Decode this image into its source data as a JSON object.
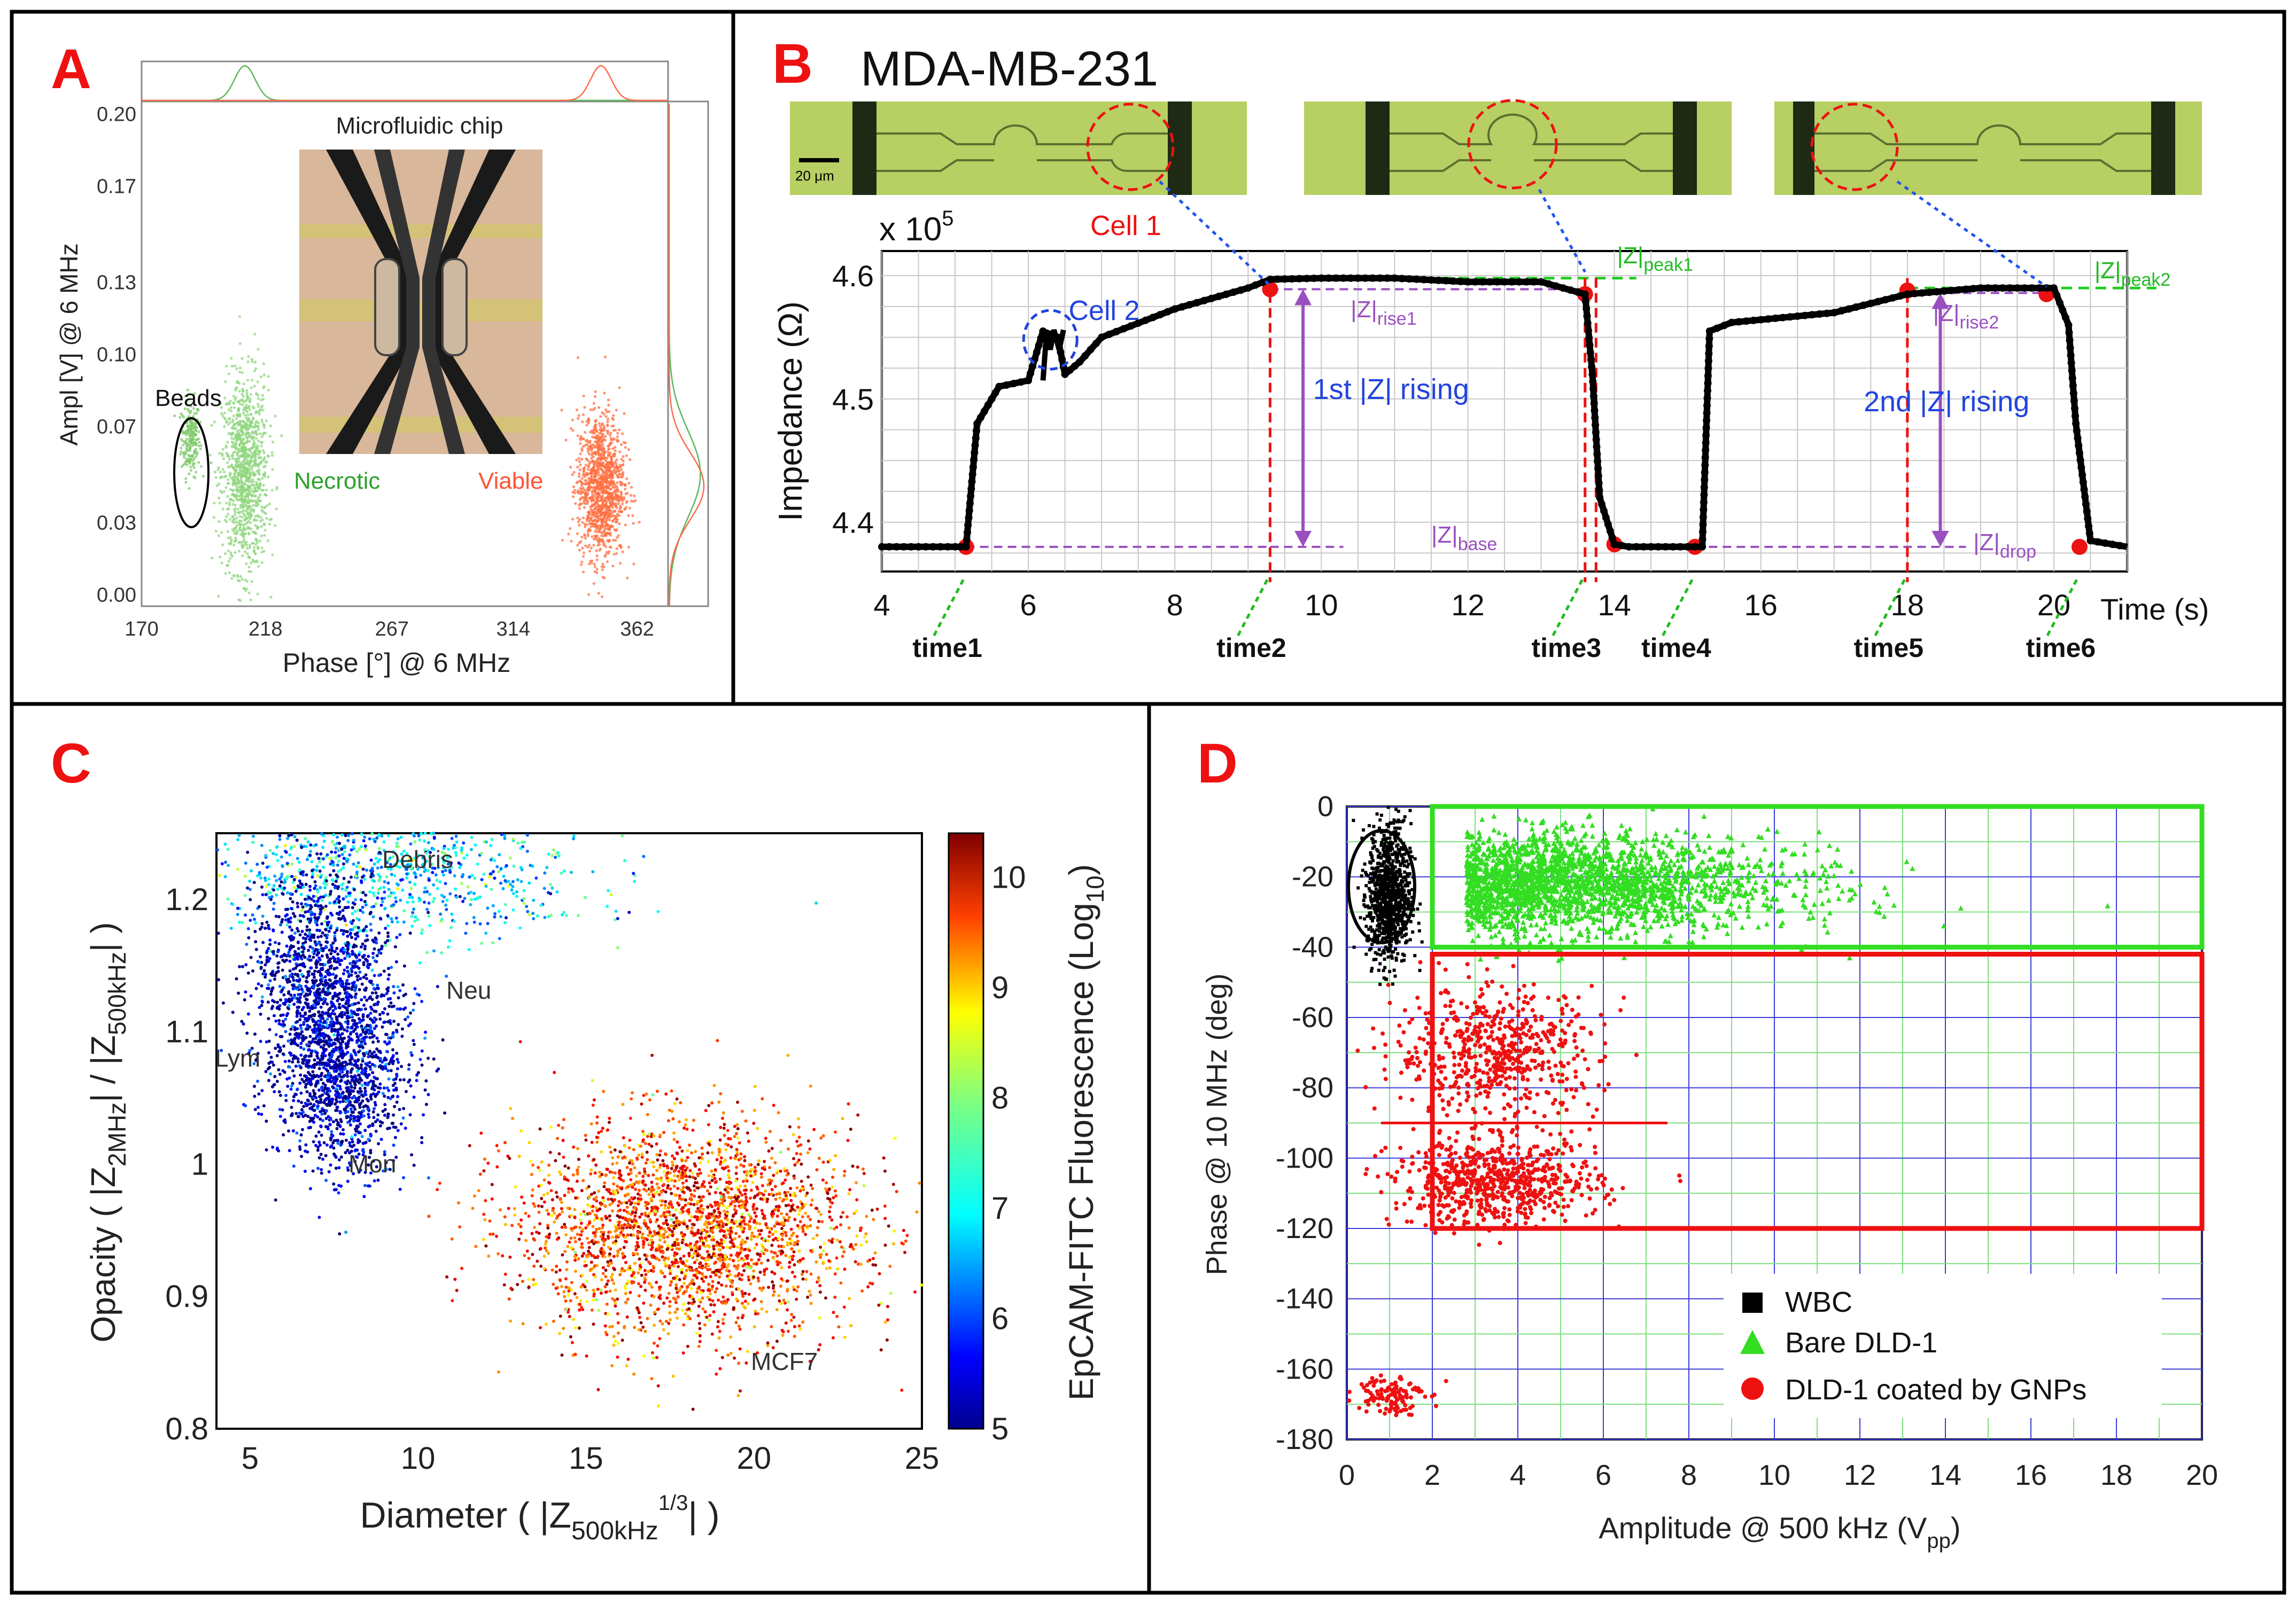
{
  "chart_data": [
    {
      "panel": "A",
      "type": "scatter",
      "xlabel": "Phase [°] @ 6 MHz",
      "ylabel": "Ampl [V] @ 6 MHz",
      "xlim": [
        170,
        374
      ],
      "ylim": [
        -0.005,
        0.205
      ],
      "xticks": [
        "170",
        "218",
        "267",
        "314",
        "362"
      ],
      "yticks": [
        "0.00",
        "0.03",
        "0.07",
        "0.10",
        "0.13",
        "0.17",
        "0.20"
      ],
      "inset_title": "Microfluidic chip",
      "series": [
        {
          "name": "Beads",
          "color": "#7ec96a",
          "cx": 189,
          "cy": 0.065,
          "sx": 1.8,
          "sy": 0.008,
          "n": 220
        },
        {
          "name": "Necrotic",
          "color": "#8fd67e",
          "cx": 210,
          "cy": 0.05,
          "sx": 4.5,
          "sy": 0.02,
          "n": 1100
        },
        {
          "name": "Viable",
          "color": "#ff7043",
          "cx": 348,
          "cy": 0.045,
          "sx": 4.5,
          "sy": 0.015,
          "n": 1200
        }
      ],
      "annotations": [
        "Beads",
        "Necrotic",
        "Viable"
      ]
    },
    {
      "panel": "B",
      "type": "line",
      "title": "MDA-MB-231",
      "xlabel": "Time (s)",
      "ylabel": "Impedance (Ω)",
      "multiplier": "x 10",
      "multiplier_exp": "5",
      "xlim": [
        4,
        21
      ],
      "ylim": [
        4.36,
        4.62
      ],
      "xticks": [
        "4",
        "6",
        "8",
        "10",
        "12",
        "14",
        "16",
        "18",
        "20"
      ],
      "yticks": [
        "4.4",
        "4.5",
        "4.6"
      ],
      "x": [
        4.0,
        5.0,
        5.15,
        5.3,
        5.6,
        6.0,
        6.2,
        6.4,
        6.5,
        6.7,
        7.0,
        8.0,
        9.0,
        9.3,
        10.0,
        11.0,
        12.0,
        13.0,
        13.6,
        13.7,
        13.8,
        14.0,
        14.2,
        15.0,
        15.2,
        15.3,
        15.6,
        17.0,
        18.0,
        19.0,
        20.0,
        20.2,
        20.3,
        20.5,
        21.0
      ],
      "values": [
        4.38,
        4.38,
        4.38,
        4.48,
        4.51,
        4.515,
        4.555,
        4.55,
        4.52,
        4.53,
        4.55,
        4.573,
        4.59,
        4.597,
        4.598,
        4.598,
        4.595,
        4.595,
        4.585,
        4.52,
        4.42,
        4.382,
        4.38,
        4.38,
        4.38,
        4.555,
        4.562,
        4.57,
        4.585,
        4.59,
        4.59,
        4.56,
        4.48,
        4.385,
        4.38
      ],
      "marked_points": [
        {
          "label": "time1",
          "x": 5.15,
          "y": 4.38
        },
        {
          "label": "time2",
          "x": 9.3,
          "y": 4.589
        },
        {
          "label": "time3",
          "x": 13.6,
          "y": 4.585
        },
        {
          "label": "time4",
          "x": 15.1,
          "y": 4.38
        },
        {
          "label": "time5",
          "x": 18.0,
          "y": 4.588
        },
        {
          "label": "time6",
          "x": 20.35,
          "y": 4.38
        }
      ],
      "extra_points": [
        {
          "x": 14.0,
          "y": 4.382
        },
        {
          "x": 19.9,
          "y": 4.585
        }
      ],
      "peak1": 4.598,
      "peak2": 4.59,
      "base": 4.38,
      "labels": {
        "cell1": "Cell 1",
        "cell2": "Cell 2",
        "rising1": "1st |Z| rising",
        "rising2": "2nd |Z| rising",
        "z": "|Z|",
        "peak1": "peak1",
        "peak2": "peak2",
        "rise1": "rise1",
        "rise2": "rise2",
        "base": "base",
        "drop": "drop",
        "scale_bar": "20 μm"
      }
    },
    {
      "panel": "C",
      "type": "scatter",
      "xlabel_main": "Diameter ( |Z",
      "xlabel_sub": "500kHz",
      "xlabel_sup": "1/3",
      "xlabel_end": "| )",
      "ylabel_main": "Opacity ( |Z",
      "ylabel_sub1": "2MHz",
      "ylabel_mid": "| / |Z",
      "ylabel_sub2": "500kHz",
      "ylabel_end": "| )",
      "xlim": [
        4,
        25
      ],
      "ylim": [
        0.8,
        1.25
      ],
      "xticks": [
        "5",
        "10",
        "15",
        "20",
        "25"
      ],
      "yticks": [
        "0.8",
        "0.9",
        "1",
        "1.1",
        "1.2"
      ],
      "colorbar_label_main": "EpCAM-FITC Fluorescence (Log",
      "colorbar_label_sub": "10",
      "colorbar_label_end": ")",
      "colorbar_range": [
        5,
        10.4
      ],
      "colorbar_ticks": [
        "5",
        "6",
        "7",
        "8",
        "9",
        "10"
      ],
      "clusters": [
        {
          "name": "Debris",
          "cx": 9,
          "cy": 1.22,
          "sx": 3.0,
          "sy": 0.025,
          "c": 6.8,
          "n": 900
        },
        {
          "name": "Lym",
          "cx": 7.0,
          "cy": 1.13,
          "sx": 1.0,
          "sy": 0.05,
          "c": 5.2,
          "n": 1400
        },
        {
          "name": "Neu",
          "cx": 8.0,
          "cy": 1.08,
          "sx": 1.0,
          "sy": 0.04,
          "c": 5.3,
          "n": 700
        },
        {
          "name": "Mon",
          "cx": 7.8,
          "cy": 1.05,
          "sx": 0.7,
          "sy": 0.03,
          "c": 5.2,
          "n": 400
        },
        {
          "name": "MCF7",
          "cx": 18,
          "cy": 0.95,
          "sx": 2.5,
          "sy": 0.04,
          "c": 9.4,
          "n": 2600
        }
      ],
      "annotations": [
        "Debris",
        "Neu",
        "Lym",
        "Mon",
        "MCF7"
      ]
    },
    {
      "panel": "D",
      "type": "scatter",
      "xlabel_main": "Amplitude @ 500 kHz (V",
      "xlabel_sub": "pp",
      "xlabel_end": ")",
      "ylabel": "Phase @ 10 MHz (deg)",
      "xlim": [
        0,
        20
      ],
      "ylim": [
        -180,
        0
      ],
      "xticks": [
        "0",
        "2",
        "4",
        "6",
        "8",
        "10",
        "12",
        "14",
        "16",
        "18",
        "20"
      ],
      "yticks": [
        "0",
        "-20",
        "-40",
        "-60",
        "-80",
        "-100",
        "-120",
        "-140",
        "-160",
        "-180"
      ],
      "legend": [
        "WBC",
        "Bare DLD-1",
        "DLD-1 coated by GNPs"
      ],
      "colors": {
        "WBC": "#000000",
        "Bare DLD-1": "#33dd22",
        "DLD-1 coated by GNPs": "#ee1111"
      },
      "clusters": [
        {
          "name": "WBC",
          "cx": 1.0,
          "cy": -25,
          "sx": 0.25,
          "sy": 10,
          "n": 900
        },
        {
          "name": "Bare DLD-1",
          "cx": 5.0,
          "cy": -22,
          "sx": 3.5,
          "sy": 7,
          "n": 2200
        },
        {
          "name": "DLD-1 coated by GNPs",
          "cx": 3.5,
          "cy": -70,
          "sx": 1.2,
          "sy": 9,
          "n": 600
        },
        {
          "name": "DLD-1 coated by GNPs",
          "cx": 3.5,
          "cy": -107,
          "sx": 1.2,
          "sy": 6,
          "n": 700
        },
        {
          "name": "DLD-1 coated by GNPs",
          "cx": 1.0,
          "cy": -167,
          "sx": 0.4,
          "sy": 3,
          "n": 120
        }
      ],
      "boxes": [
        {
          "name": "Bare DLD-1 gate",
          "x": [
            2,
            20
          ],
          "y": [
            -40,
            0
          ]
        },
        {
          "name": "coated gate",
          "x": [
            2,
            20
          ],
          "y": [
            -120,
            -42
          ]
        }
      ]
    }
  ],
  "panels": {
    "a": "A",
    "b": "B",
    "c": "C",
    "d": "D"
  }
}
